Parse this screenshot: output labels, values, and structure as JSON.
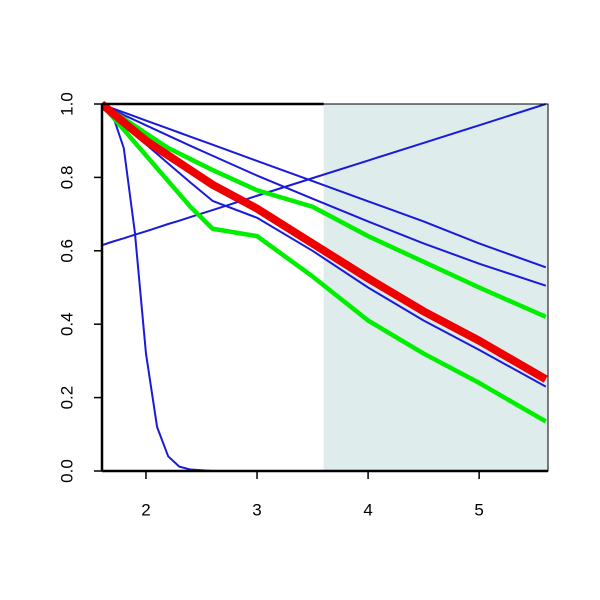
{
  "chart_data": {
    "type": "line",
    "x": [
      1.6,
      1.7,
      1.8,
      1.9,
      2.0,
      2.1,
      2.2,
      2.3,
      2.4,
      2.6,
      3.0,
      3.5,
      4.0,
      4.5,
      5.0,
      5.6
    ],
    "series": [
      {
        "color": "#1a1adb",
        "width": 2,
        "values": [
          1,
          0.97,
          0.88,
          0.65,
          0.32,
          0.12,
          0.04,
          0.012,
          0.004,
          0,
          0,
          0,
          0,
          0,
          0,
          0
        ]
      },
      {
        "color": "#1a1adb",
        "width": 2,
        "values": [
          0.615,
          0.625,
          0.634,
          0.644,
          0.653,
          0.663,
          0.673,
          0.682,
          0.692,
          0.711,
          0.75,
          0.798,
          0.846,
          0.894,
          0.942,
          1.0
        ]
      },
      {
        "color": "#1a1adb",
        "width": 2,
        "values": [
          1,
          0.988,
          0.977,
          0.966,
          0.955,
          0.944,
          0.933,
          0.922,
          0.911,
          0.889,
          0.845,
          0.79,
          0.735,
          0.68,
          0.62,
          0.555
        ]
      },
      {
        "color": "#1a1adb",
        "width": 2,
        "values": [
          1,
          0.985,
          0.97,
          0.956,
          0.942,
          0.928,
          0.914,
          0.9,
          0.886,
          0.859,
          0.805,
          0.742,
          0.68,
          0.62,
          0.565,
          0.505
        ]
      },
      {
        "color": "#1a1adb",
        "width": 2,
        "values": [
          1,
          0.972,
          0.945,
          0.918,
          0.89,
          0.864,
          0.838,
          0.812,
          0.786,
          0.736,
          0.69,
          0.6,
          0.5,
          0.41,
          0.33,
          0.23
        ]
      },
      {
        "color": "#00ee00",
        "width": 4.5,
        "values": [
          1,
          0.98,
          0.96,
          0.94,
          0.92,
          0.9,
          0.88,
          0.865,
          0.85,
          0.82,
          0.765,
          0.72,
          0.64,
          0.57,
          0.5,
          0.42
        ]
      },
      {
        "color": "#00ee00",
        "width": 4.5,
        "values": [
          1,
          0.965,
          0.93,
          0.895,
          0.86,
          0.825,
          0.79,
          0.755,
          0.72,
          0.66,
          0.64,
          0.53,
          0.41,
          0.32,
          0.24,
          0.135
        ]
      },
      {
        "color": "#ee0000",
        "width": 8,
        "values": [
          1,
          0.975,
          0.95,
          0.925,
          0.9,
          0.88,
          0.86,
          0.84,
          0.82,
          0.78,
          0.715,
          0.62,
          0.525,
          0.435,
          0.355,
          0.25
        ]
      }
    ],
    "shade_x": [
      3.6,
      5.62
    ],
    "shade_color": "#deecec",
    "xlim": [
      1.604,
      5.62
    ],
    "ylim": [
      0,
      1
    ],
    "xticks": [
      2,
      3,
      4,
      5
    ],
    "yticks": [
      {
        "value": 0,
        "label": "0.0"
      },
      0.2,
      0.4,
      0.6,
      0.8,
      {
        "value": 1,
        "label": "1.0"
      }
    ]
  }
}
